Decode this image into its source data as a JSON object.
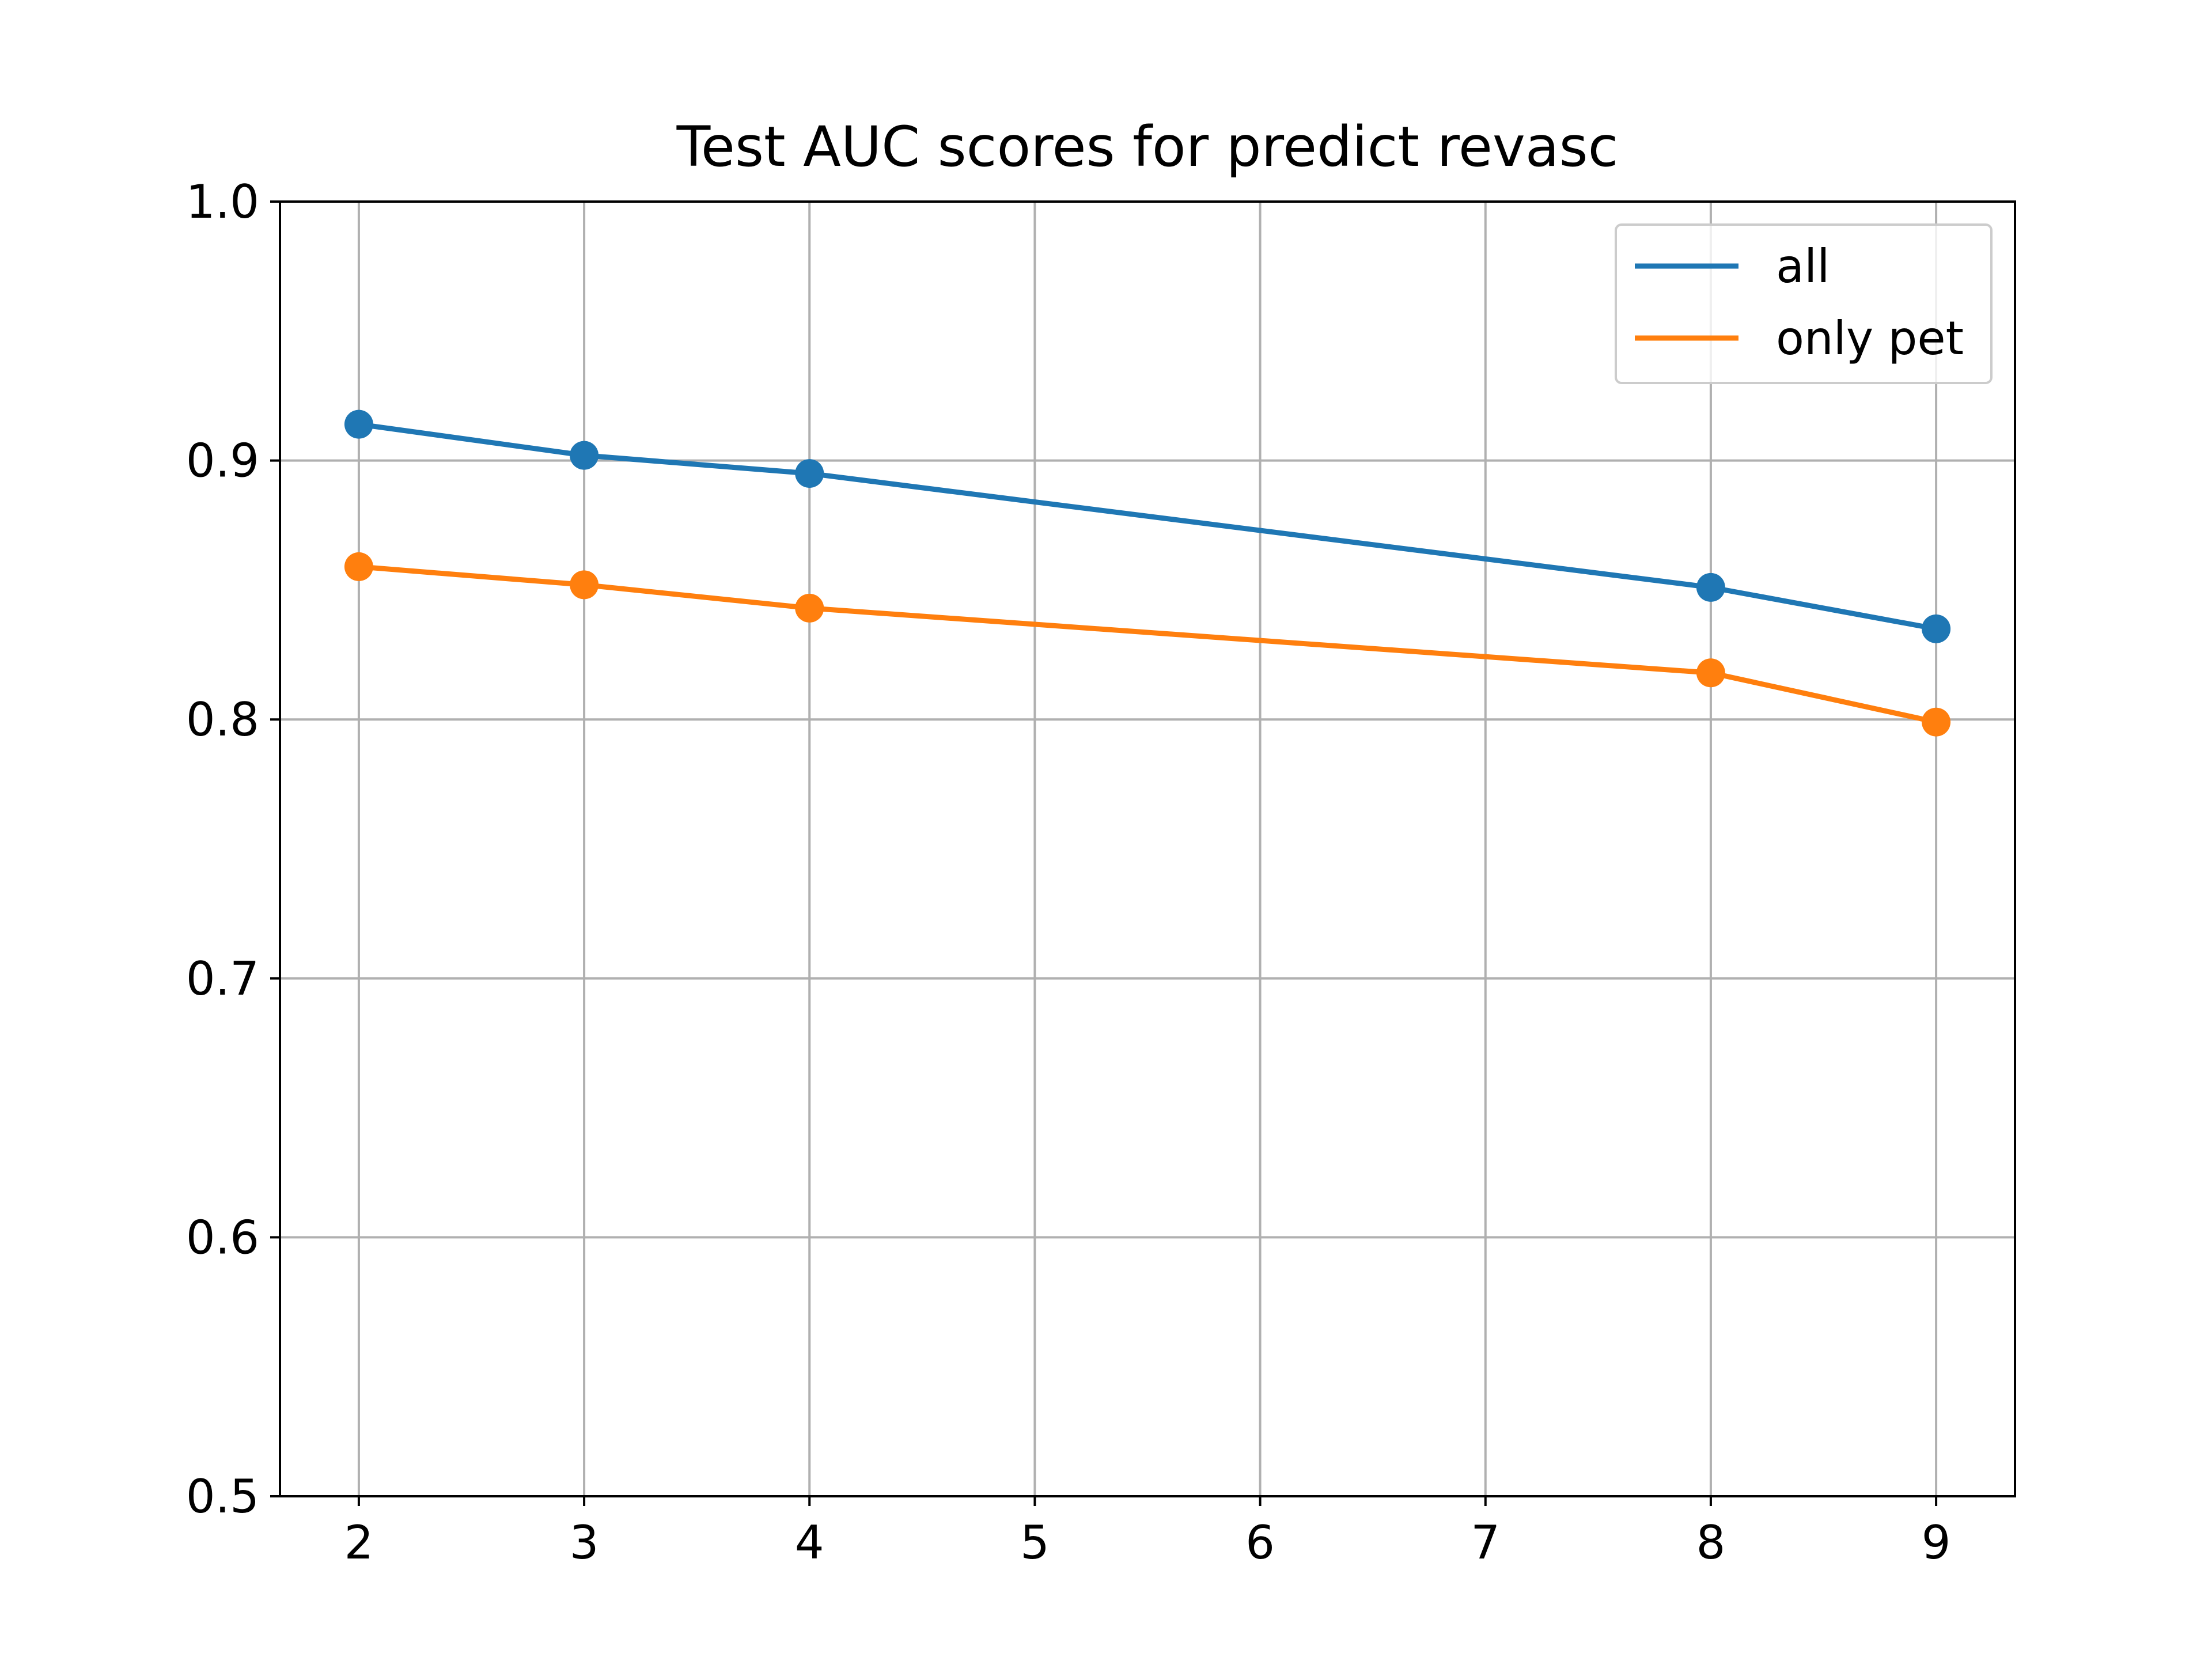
{
  "chart_data": {
    "type": "line",
    "title": "Test AUC scores for predict revasc",
    "xlabel": "",
    "ylabel": "",
    "x": [
      2,
      3,
      4,
      8,
      9
    ],
    "xticks": [
      "2",
      "3",
      "4",
      "5",
      "6",
      "7",
      "8",
      "9"
    ],
    "yticks": [
      "0.5",
      "0.6",
      "0.7",
      "0.8",
      "0.9",
      "1.0"
    ],
    "xlim": [
      1.65,
      9.35
    ],
    "ylim": [
      0.5,
      1.0
    ],
    "grid": true,
    "markers": true,
    "legend_position": "top-right",
    "series": [
      {
        "name": "all",
        "color": "#1f77b4",
        "values": [
          0.914,
          0.902,
          0.895,
          0.851,
          0.835
        ]
      },
      {
        "name": "only pet",
        "color": "#ff7f0e",
        "values": [
          0.859,
          0.852,
          0.843,
          0.818,
          0.799
        ]
      }
    ]
  }
}
